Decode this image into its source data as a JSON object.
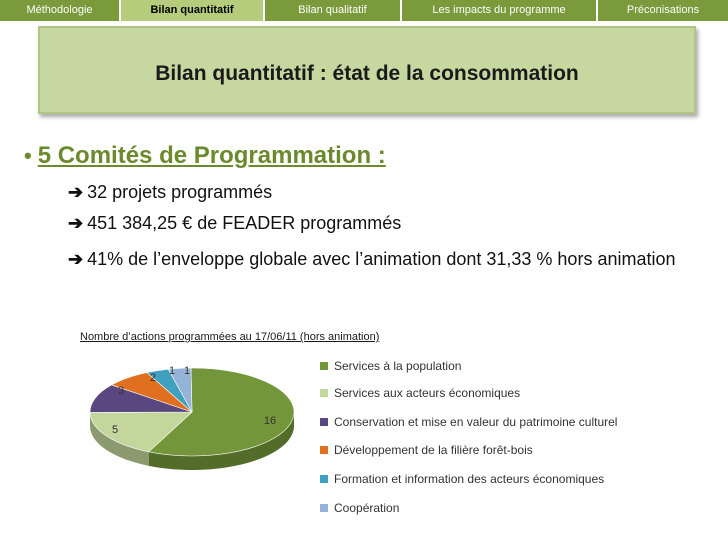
{
  "nav": {
    "tabs": [
      {
        "label": "Méthodologie",
        "width": 121
      },
      {
        "label": "Bilan quantitatif",
        "width": 144,
        "active": true
      },
      {
        "label": "Bilan qualitatif",
        "width": 137
      },
      {
        "label": "Les impacts du programme",
        "width": 196
      },
      {
        "label": "Préconisations",
        "width": 130
      }
    ]
  },
  "header": {
    "title": "Bilan quantitatif : état de la consommation"
  },
  "content": {
    "bullet": "5 Comités de Programmation :",
    "points": [
      "32 projets programmés",
      "451 384,25 € de FEADER programmés",
      "41% de l’enveloppe globale avec l’animation dont 31,33 % hors animation"
    ]
  },
  "chart_data": {
    "type": "pie",
    "title": "Nombre d’actions programmées au 17/06/11 (hors animation)",
    "categories": [
      "Services à la population",
      "Services aux acteurs économiques",
      "Conservation et mise en valeur du patrimoine culturel",
      "Développement de la filière forêt-bois",
      "Formation et information des acteurs économiques",
      "Coopération"
    ],
    "values": [
      16,
      5,
      3,
      2,
      1,
      1
    ],
    "colors": [
      "#74963a",
      "#c3d69b",
      "#5b4780",
      "#e0701f",
      "#3fa0c0",
      "#95b3d7"
    ],
    "legend_position": "right"
  }
}
